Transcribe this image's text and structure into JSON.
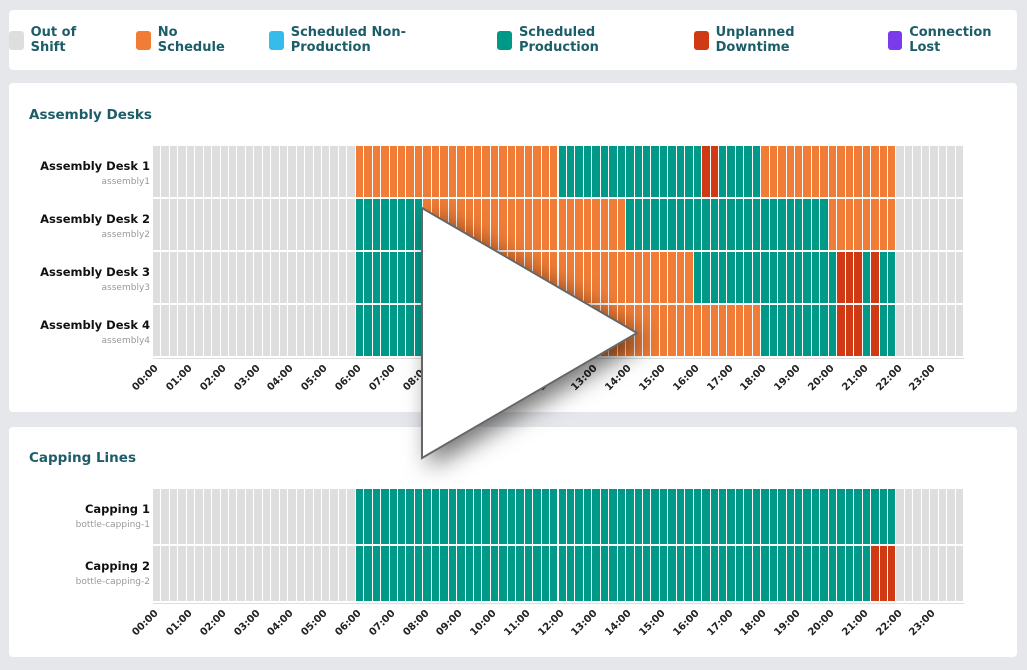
{
  "legend": [
    {
      "key": "out",
      "label": "Out of Shift",
      "color": "#dedede"
    },
    {
      "key": "nosched",
      "label": "No Schedule",
      "color": "#f07c36"
    },
    {
      "key": "nonprod",
      "label": "Scheduled Non-Production",
      "color": "#35bbec"
    },
    {
      "key": "prod",
      "label": "Scheduled Production",
      "color": "#009987"
    },
    {
      "key": "down",
      "label": "Unplanned Downtime",
      "color": "#cf3a14"
    },
    {
      "key": "lost",
      "label": "Connection Lost",
      "color": "#7c3aed"
    }
  ],
  "hours": [
    "00:00",
    "01:00",
    "02:00",
    "03:00",
    "04:00",
    "05:00",
    "06:00",
    "07:00",
    "08:00",
    "09:00",
    "10:00",
    "11:00",
    "12:00",
    "13:00",
    "14:00",
    "15:00",
    "16:00",
    "17:00",
    "18:00",
    "19:00",
    "20:00",
    "21:00",
    "22:00",
    "23:00"
  ],
  "sections": [
    {
      "title": "Assembly Desks",
      "rows": [
        {
          "name": "Assembly Desk 1",
          "id": "assembly1",
          "segments": [
            [
              "out",
              "00:00",
              "06:00"
            ],
            [
              "nosched",
              "06:00",
              "12:00"
            ],
            [
              "prod",
              "12:00",
              "16:15"
            ],
            [
              "down",
              "16:15",
              "16:45"
            ],
            [
              "prod",
              "16:45",
              "18:00"
            ],
            [
              "nosched",
              "18:00",
              "22:00"
            ],
            [
              "out",
              "22:00",
              "24:00"
            ]
          ]
        },
        {
          "name": "Assembly Desk 2",
          "id": "assembly2",
          "segments": [
            [
              "out",
              "00:00",
              "06:00"
            ],
            [
              "prod",
              "06:00",
              "08:00"
            ],
            [
              "nosched",
              "08:00",
              "14:00"
            ],
            [
              "prod",
              "14:00",
              "20:00"
            ],
            [
              "nosched",
              "20:00",
              "22:00"
            ],
            [
              "out",
              "22:00",
              "24:00"
            ]
          ]
        },
        {
          "name": "Assembly Desk 3",
          "id": "assembly3",
          "segments": [
            [
              "out",
              "00:00",
              "06:00"
            ],
            [
              "prod",
              "06:00",
              "08:00"
            ],
            [
              "nosched",
              "08:00",
              "16:00"
            ],
            [
              "prod",
              "16:00",
              "20:15"
            ],
            [
              "down",
              "20:15",
              "21:00"
            ],
            [
              "prod",
              "21:00",
              "21:15"
            ],
            [
              "down",
              "21:15",
              "21:30"
            ],
            [
              "prod",
              "21:30",
              "22:00"
            ],
            [
              "out",
              "22:00",
              "24:00"
            ]
          ]
        },
        {
          "name": "Assembly Desk 4",
          "id": "assembly4",
          "segments": [
            [
              "out",
              "00:00",
              "06:00"
            ],
            [
              "prod",
              "06:00",
              "08:00"
            ],
            [
              "nosched",
              "08:00",
              "18:00"
            ],
            [
              "prod",
              "18:00",
              "20:15"
            ],
            [
              "down",
              "20:15",
              "21:00"
            ],
            [
              "prod",
              "21:00",
              "21:15"
            ],
            [
              "down",
              "21:15",
              "21:30"
            ],
            [
              "prod",
              "21:30",
              "22:00"
            ],
            [
              "out",
              "22:00",
              "24:00"
            ]
          ]
        }
      ]
    },
    {
      "title": "Capping Lines",
      "rows": [
        {
          "name": "Capping 1",
          "id": "bottle-capping-1",
          "segments": [
            [
              "out",
              "00:00",
              "06:00"
            ],
            [
              "prod",
              "06:00",
              "22:00"
            ],
            [
              "out",
              "22:00",
              "24:00"
            ]
          ]
        },
        {
          "name": "Capping 2",
          "id": "bottle-capping-2",
          "segments": [
            [
              "out",
              "00:00",
              "06:00"
            ],
            [
              "prod",
              "06:00",
              "21:15"
            ],
            [
              "down",
              "21:15",
              "22:00"
            ],
            [
              "out",
              "22:00",
              "24:00"
            ]
          ]
        }
      ]
    }
  ]
}
